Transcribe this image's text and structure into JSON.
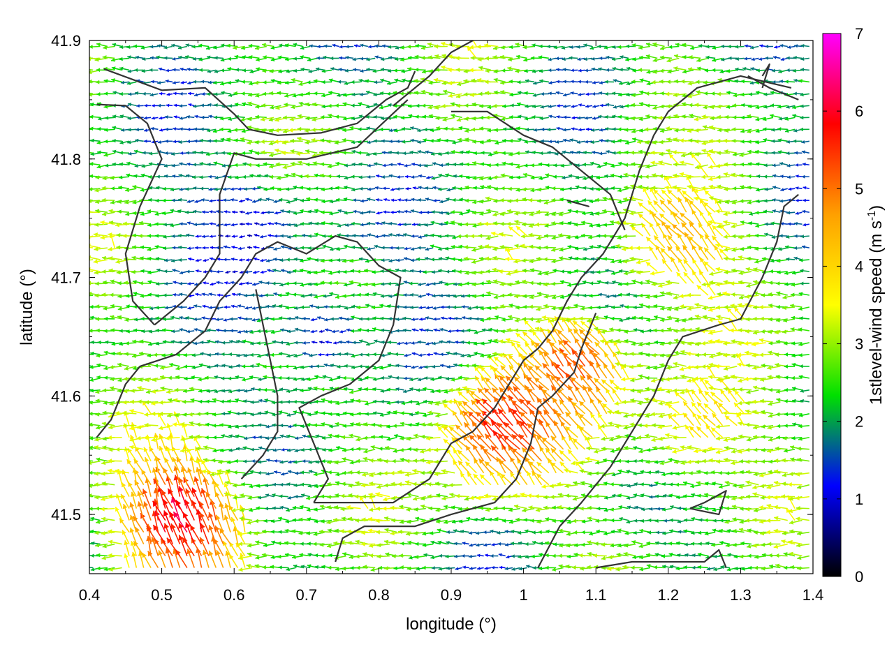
{
  "chart_data": {
    "type": "vector-field",
    "xlabel": "longitude (°)",
    "ylabel": "latitude (°)",
    "colorbar_label": "1stlevel-wind speed (m s-1)",
    "colorbar_label_parts": {
      "base": "1stlevel-wind speed (m s",
      "sup": "-1",
      "close": ")"
    },
    "xlim": [
      0.4,
      1.4
    ],
    "ylim": [
      41.45,
      41.9
    ],
    "x_ticks": [
      0.4,
      0.5,
      0.6,
      0.7,
      0.8,
      0.9,
      1.0,
      1.1,
      1.2,
      1.3,
      1.4
    ],
    "x_tick_labels": [
      "0.4",
      "0.5",
      "0.6",
      "0.7",
      "0.8",
      "0.9",
      "1",
      "1.1",
      "1.2",
      "1.3",
      "1.4"
    ],
    "y_ticks": [
      41.5,
      41.6,
      41.7,
      41.8,
      41.9
    ],
    "y_tick_labels": [
      "41.5",
      "41.6",
      "41.7",
      "41.8",
      "41.9"
    ],
    "colorbar_range": [
      0,
      7
    ],
    "colorbar_ticks": [
      0,
      1,
      2,
      3,
      4,
      5,
      6,
      7
    ],
    "colorbar_tick_labels": [
      "0",
      "1",
      "2",
      "3",
      "4",
      "5",
      "6",
      "7"
    ],
    "colormap": [
      "#000000",
      "#0000ff",
      "#00e000",
      "#ffff00",
      "#ffa000",
      "#ff0000",
      "#ff00ff"
    ],
    "contour_color": "#333333",
    "grid": false,
    "vector_grid": {
      "x_step": 0.01,
      "y_step": 0.01
    },
    "speed_regions": [
      {
        "lon": 0.53,
        "lat": 41.49,
        "speed": 6.0,
        "r": 0.09
      },
      {
        "lon": 0.98,
        "lat": 41.57,
        "speed": 5.6,
        "r": 0.09
      },
      {
        "lon": 1.08,
        "lat": 41.62,
        "speed": 5.2,
        "r": 0.07
      },
      {
        "lon": 1.22,
        "lat": 41.73,
        "speed": 4.4,
        "r": 0.08
      },
      {
        "lon": 1.25,
        "lat": 41.58,
        "speed": 3.8,
        "r": 0.09
      },
      {
        "lon": 0.62,
        "lat": 41.74,
        "speed": 1.0,
        "r": 0.08
      },
      {
        "lon": 0.73,
        "lat": 41.65,
        "speed": 1.1,
        "r": 0.06
      },
      {
        "lon": 0.88,
        "lat": 41.66,
        "speed": 1.4,
        "r": 0.06
      },
      {
        "lon": 1.22,
        "lat": 41.84,
        "speed": 3.0,
        "r": 0.07
      }
    ],
    "contours": [
      [
        [
          0.42,
          41.876
        ],
        [
          0.5,
          41.858
        ],
        [
          0.56,
          41.86
        ],
        [
          0.6,
          41.838
        ],
        [
          0.62,
          41.825
        ],
        [
          0.66,
          41.82
        ],
        [
          0.72,
          41.822
        ],
        [
          0.77,
          41.83
        ],
        [
          0.79,
          41.84
        ],
        [
          0.81,
          41.85
        ],
        [
          0.84,
          41.86
        ],
        [
          0.85,
          41.874
        ]
      ],
      [
        [
          0.41,
          41.846
        ],
        [
          0.45,
          41.845
        ],
        [
          0.48,
          41.83
        ],
        [
          0.5,
          41.8
        ],
        [
          0.47,
          41.76
        ],
        [
          0.45,
          41.72
        ],
        [
          0.46,
          41.68
        ],
        [
          0.49,
          41.66
        ]
      ],
      [
        [
          0.49,
          41.66
        ],
        [
          0.53,
          41.68
        ],
        [
          0.56,
          41.7
        ],
        [
          0.58,
          41.72
        ],
        [
          0.58,
          41.77
        ],
        [
          0.6,
          41.805
        ],
        [
          0.63,
          41.8
        ],
        [
          0.7,
          41.8
        ],
        [
          0.77,
          41.81
        ],
        [
          0.84,
          41.85
        ]
      ],
      [
        [
          0.41,
          41.565
        ],
        [
          0.43,
          41.58
        ],
        [
          0.45,
          41.61
        ],
        [
          0.47,
          41.625
        ],
        [
          0.52,
          41.635
        ],
        [
          0.56,
          41.655
        ],
        [
          0.58,
          41.68
        ],
        [
          0.61,
          41.7
        ],
        [
          0.63,
          41.72
        ],
        [
          0.66,
          41.73
        ],
        [
          0.7,
          41.72
        ],
        [
          0.74,
          41.735
        ],
        [
          0.77,
          41.73
        ],
        [
          0.8,
          41.71
        ],
        [
          0.83,
          41.7
        ],
        [
          0.82,
          41.66
        ],
        [
          0.8,
          41.63
        ],
        [
          0.76,
          41.61
        ],
        [
          0.72,
          41.6
        ],
        [
          0.69,
          41.59
        ],
        [
          0.71,
          41.56
        ],
        [
          0.73,
          41.53
        ],
        [
          0.71,
          41.51
        ]
      ],
      [
        [
          0.63,
          41.69
        ],
        [
          0.64,
          41.66
        ],
        [
          0.65,
          41.63
        ],
        [
          0.66,
          41.6
        ],
        [
          0.66,
          41.57
        ],
        [
          0.64,
          41.55
        ],
        [
          0.61,
          41.53
        ]
      ],
      [
        [
          0.71,
          41.51
        ],
        [
          0.76,
          41.51
        ],
        [
          0.82,
          41.51
        ],
        [
          0.87,
          41.53
        ],
        [
          0.9,
          41.56
        ],
        [
          0.93,
          41.57
        ],
        [
          0.96,
          41.59
        ],
        [
          0.98,
          41.61
        ],
        [
          1.0,
          41.63
        ],
        [
          1.02,
          41.64
        ],
        [
          1.04,
          41.655
        ],
        [
          1.06,
          41.68
        ],
        [
          1.08,
          41.7
        ],
        [
          1.11,
          41.72
        ],
        [
          1.14,
          41.75
        ],
        [
          1.16,
          41.79
        ],
        [
          1.18,
          41.82
        ],
        [
          1.2,
          41.84
        ],
        [
          1.24,
          41.86
        ],
        [
          1.3,
          41.87
        ],
        [
          1.37,
          41.86
        ]
      ],
      [
        [
          0.82,
          41.845
        ],
        [
          0.87,
          41.87
        ],
        [
          0.9,
          41.89
        ],
        [
          0.93,
          41.9
        ]
      ],
      [
        [
          0.9,
          41.84
        ],
        [
          0.95,
          41.84
        ],
        [
          1.0,
          41.82
        ],
        [
          1.04,
          41.81
        ],
        [
          1.08,
          41.79
        ],
        [
          1.12,
          41.77
        ],
        [
          1.14,
          41.74
        ]
      ],
      [
        [
          0.74,
          41.46
        ],
        [
          0.75,
          41.48
        ],
        [
          0.78,
          41.49
        ],
        [
          0.85,
          41.49
        ],
        [
          0.9,
          41.5
        ],
        [
          0.93,
          41.505
        ],
        [
          0.96,
          41.51
        ],
        [
          0.99,
          41.53
        ],
        [
          1.01,
          41.56
        ],
        [
          1.02,
          41.59
        ],
        [
          1.04,
          41.6
        ],
        [
          1.07,
          41.62
        ],
        [
          1.08,
          41.64
        ],
        [
          1.1,
          41.67
        ]
      ],
      [
        [
          1.02,
          41.455
        ],
        [
          1.05,
          41.49
        ],
        [
          1.08,
          41.51
        ],
        [
          1.12,
          41.54
        ],
        [
          1.15,
          41.57
        ],
        [
          1.18,
          41.6
        ],
        [
          1.2,
          41.63
        ],
        [
          1.22,
          41.65
        ],
        [
          1.27,
          41.66
        ],
        [
          1.3,
          41.665
        ],
        [
          1.33,
          41.7
        ],
        [
          1.35,
          41.73
        ],
        [
          1.36,
          41.76
        ],
        [
          1.38,
          41.77
        ]
      ],
      [
        [
          1.1,
          41.455
        ],
        [
          1.15,
          41.46
        ],
        [
          1.2,
          41.46
        ],
        [
          1.25,
          41.46
        ],
        [
          1.27,
          41.47
        ],
        [
          1.28,
          41.455
        ]
      ],
      [
        [
          1.23,
          41.505
        ],
        [
          1.25,
          41.51
        ],
        [
          1.28,
          41.52
        ],
        [
          1.27,
          41.5
        ],
        [
          1.23,
          41.505
        ]
      ],
      [
        [
          1.06,
          41.765
        ],
        [
          1.09,
          41.76
        ],
        [
          1.06,
          41.765
        ]
      ],
      [
        [
          1.33,
          41.86
        ],
        [
          1.34,
          41.88
        ],
        [
          1.33,
          41.87
        ]
      ],
      [
        [
          1.31,
          41.87
        ],
        [
          1.34,
          41.86
        ],
        [
          1.38,
          41.85
        ]
      ]
    ]
  }
}
